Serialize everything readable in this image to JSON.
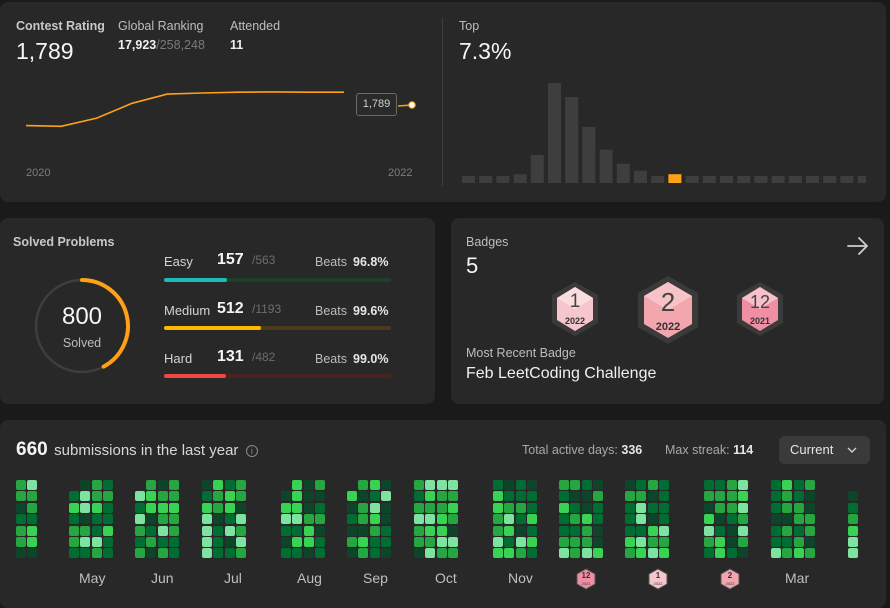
{
  "contest": {
    "rating_label": "Contest Rating",
    "rating_value": "1,789",
    "ranking_label": "Global Ranking",
    "ranking_value": "17,923",
    "ranking_total": "/258,248",
    "attended_label": "Attended",
    "attended_value": "11",
    "top_label": "Top",
    "top_value": "7.3%",
    "chart_tooltip": "1,789",
    "x_start": "2020",
    "x_end": "2022"
  },
  "chart_data": [
    {
      "type": "line",
      "title": "Contest Rating",
      "x": [
        "2020",
        "",
        "",
        "",
        "",
        "",
        "",
        "",
        "",
        "",
        "2022"
      ],
      "values": [
        1500,
        1498,
        1520,
        1560,
        1585,
        1588,
        1590,
        1591,
        1590,
        1590,
        1789
      ],
      "xlabel": "",
      "ylabel": "",
      "color": "#ffa116"
    },
    {
      "type": "bar",
      "title": "Rating distribution",
      "values": [
        4,
        4,
        4,
        5,
        16,
        57,
        49,
        32,
        19,
        11,
        7,
        4,
        5,
        4,
        4,
        4,
        4,
        4,
        4,
        4,
        4,
        4,
        4,
        4
      ],
      "highlight_index": 12,
      "colors": {
        "bar": "#3e3e3e",
        "highlight": "#ffa116"
      }
    }
  ],
  "solved": {
    "title": "Solved Problems",
    "total": "800",
    "total_label": "Solved",
    "rows": [
      {
        "name": "Easy",
        "count": "157",
        "total": "/563",
        "beats_label": "Beats",
        "beats": "96.8%",
        "fraction": 0.279,
        "color": "#1cbaba",
        "track": "#1e3e2c"
      },
      {
        "name": "Medium",
        "count": "512",
        "total": "/1193",
        "beats_label": "Beats",
        "beats": "99.6%",
        "fraction": 0.429,
        "color": "#ffb800",
        "track": "#4a3c1b"
      },
      {
        "name": "Hard",
        "count": "131",
        "total": "/482",
        "beats_label": "Beats",
        "beats": "99.0%",
        "fraction": 0.272,
        "color": "#ef4743",
        "track": "#4a2222"
      }
    ]
  },
  "badges": {
    "title": "Badges",
    "count": "5",
    "items": [
      {
        "number": "1",
        "year": "2022"
      },
      {
        "number": "2",
        "year": "2022"
      },
      {
        "number": "12",
        "year": "2021"
      }
    ],
    "recent_label": "Most Recent Badge",
    "recent_name": "Feb LeetCoding Challenge"
  },
  "submissions": {
    "count": "660",
    "text": "submissions in the last year",
    "active_label": "Total active days:",
    "active_value": "336",
    "streak_label": "Max streak:",
    "streak_value": "114",
    "select_value": "Current",
    "months": [
      "May",
      "Jun",
      "Jul",
      "Aug",
      "Sep",
      "Oct",
      "Nov",
      "Mar"
    ],
    "mini_badges": [
      {
        "number": "12",
        "year": "2021"
      },
      {
        "number": "1",
        "year": "2022"
      },
      {
        "number": "2",
        "year": "2022"
      }
    ],
    "colors": [
      "#0e4429",
      "#006d32",
      "#26a641",
      "#39d353",
      "#7ee2a0"
    ]
  }
}
